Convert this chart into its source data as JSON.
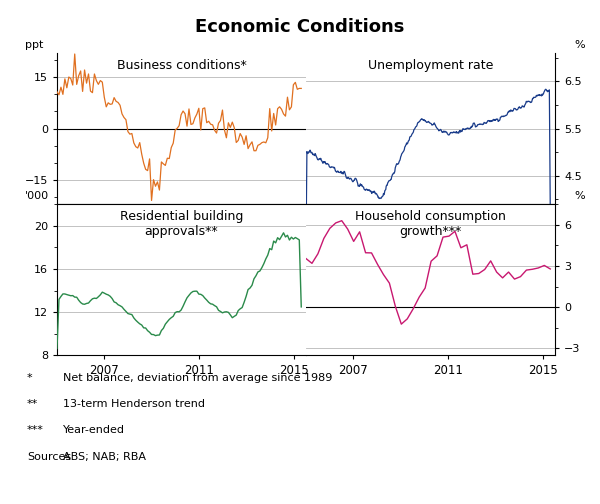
{
  "title": "Economic Conditions",
  "title_fontsize": 13,
  "panel_labels": [
    "Business conditions*",
    "Unemployment rate",
    "Residential building\napprovals**",
    "Household consumption\ngrowth***"
  ],
  "line_colors": [
    "#E07020",
    "#1A3C8A",
    "#2A8A4A",
    "#C81870"
  ],
  "background_color": "#ffffff",
  "grid_color": "#b8b8b8",
  "footnotes": [
    [
      "*",
      "Net balance, deviation from average since 1989"
    ],
    [
      "**",
      "13-term Henderson trend"
    ],
    [
      "***",
      "Year-ended"
    ],
    [
      "Sources:",
      "ABS; NAB; RBA"
    ]
  ]
}
